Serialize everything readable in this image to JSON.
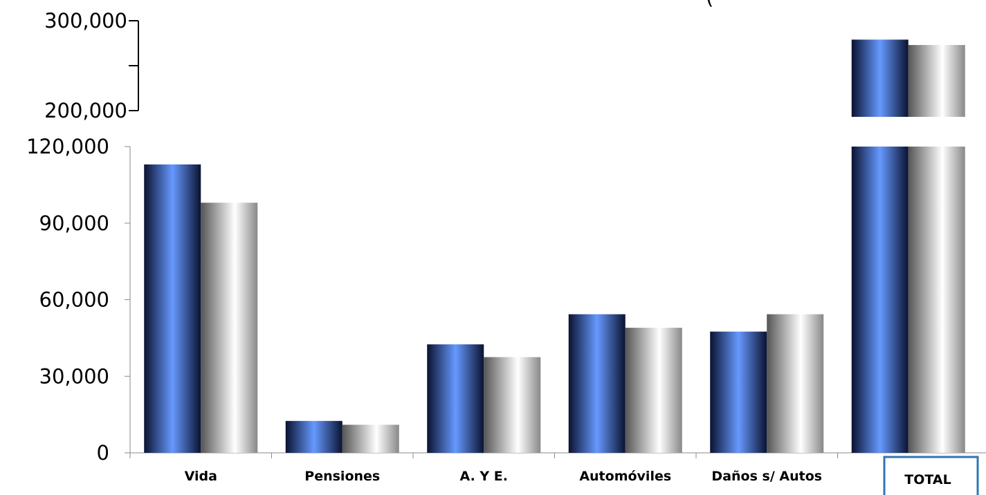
{
  "chart_data": {
    "type": "bar",
    "categories": [
      "Vida",
      "Pensiones",
      "A. Y E.",
      "Automóviles",
      "Daños s/ Autos",
      "TOTAL"
    ],
    "series": [
      {
        "values": [
          113000,
          12500,
          42500,
          54300,
          47500,
          279000
        ]
      },
      {
        "values": [
          98000,
          11000,
          37500,
          49000,
          54300,
          273000
        ]
      }
    ],
    "axes": {
      "lower": {
        "ylim": [
          0,
          120000
        ],
        "ticks": [
          "0",
          "30,000",
          "60,000",
          "90,000",
          "120,000"
        ]
      },
      "upper": {
        "ylim": [
          200000,
          300000
        ],
        "ticks": [
          "200,000",
          "300,000"
        ]
      }
    },
    "axis_break": true,
    "highlighted_category": "TOTAL",
    "partial_text": "(",
    "colors": {
      "series_1": [
        "#0a1230",
        "#6699ff"
      ],
      "series_2": [
        "#555555",
        "#ffffff"
      ],
      "highlight_box": "#2f74b5"
    },
    "grid": false,
    "legend": "none"
  }
}
